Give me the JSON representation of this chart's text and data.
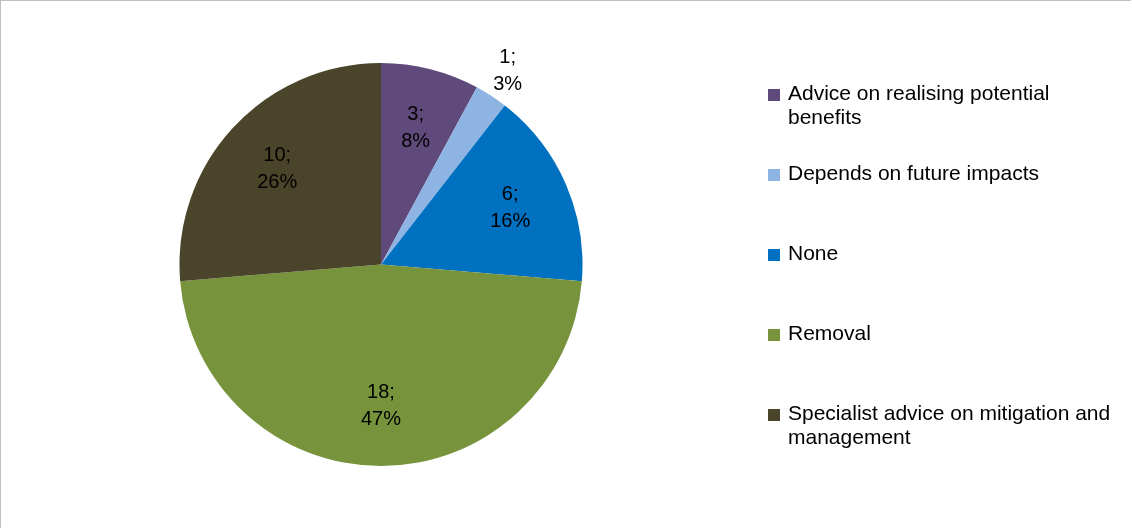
{
  "chart_data": {
    "type": "pie",
    "categories": [
      "Advice on realising potential benefits",
      "Depends on future impacts",
      "None",
      "Removal",
      "Specialist advice on mitigation and management"
    ],
    "values": [
      3,
      1,
      6,
      18,
      10
    ],
    "colors": [
      "#604a7b",
      "#8eb4e3",
      "#0070c0",
      "#77933c",
      "#4a452a"
    ],
    "value_labels": [
      "3; 8%",
      "1; 3%",
      "6; 16%",
      "18; 47%",
      "10; 26%"
    ],
    "legend": "right"
  }
}
